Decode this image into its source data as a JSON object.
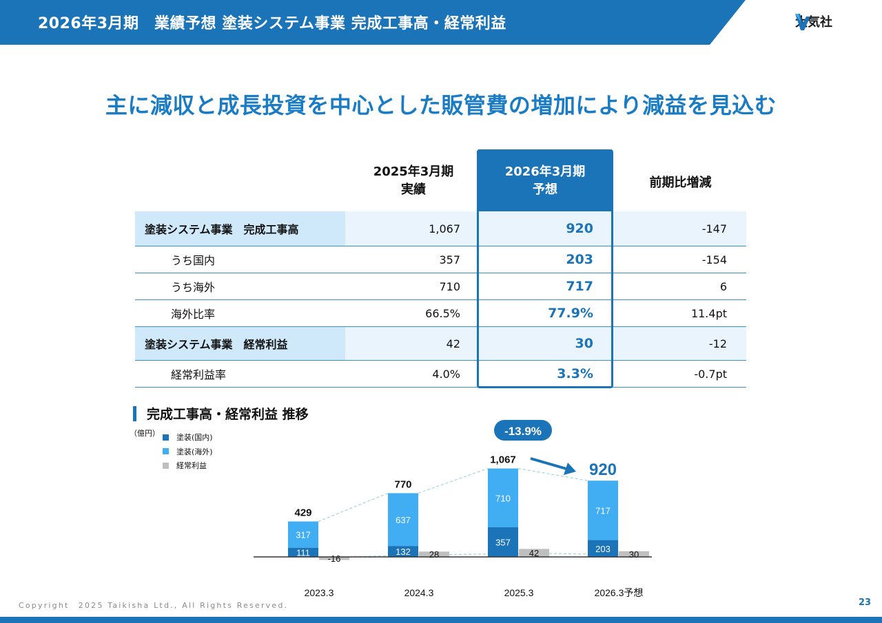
{
  "header": {
    "title": "2026年3月期　業績予想 塗装システム事業 完成工事高・経常利益",
    "logo_text": "大気社"
  },
  "headline": "主に減収と成長投資を中心とした販管費の増加により減益を見込む",
  "table": {
    "col_headers": {
      "actual": [
        "2025年3月期",
        "実績"
      ],
      "forecast": [
        "2026年3月期",
        "予想"
      ],
      "change": "前期比増減"
    },
    "rows": [
      {
        "label": "塗装システム事業　完成工事高",
        "actual": "1,067",
        "forecast": "920",
        "change": "-147",
        "highlight": true
      },
      {
        "label": "うち国内",
        "actual": "357",
        "forecast": "203",
        "change": "-154",
        "highlight": false
      },
      {
        "label": "うち海外",
        "actual": "710",
        "forecast": "717",
        "change": "6",
        "highlight": false
      },
      {
        "label": "海外比率",
        "actual": "66.5%",
        "forecast": "77.9%",
        "change": "11.4pt",
        "highlight": false
      },
      {
        "label": "塗装システム事業　経常利益",
        "actual": "42",
        "forecast": "30",
        "change": "-12",
        "highlight": true
      },
      {
        "label": "経常利益率",
        "actual": "4.0%",
        "forecast": "3.3%",
        "change": "-0.7pt",
        "highlight": false
      }
    ]
  },
  "section_title": "完成工事高・経常利益 推移",
  "unit": "（億円）",
  "legend": [
    {
      "label": "塗装(国内)",
      "color": "#1b73b8"
    },
    {
      "label": "塗装(海外)",
      "color": "#41adf3"
    },
    {
      "label": "経常利益",
      "color": "#bfbfbf"
    }
  ],
  "chart_data": {
    "type": "bar",
    "categories": [
      "2023.3",
      "2024.3",
      "2025.3",
      "2026.3予想"
    ],
    "series": [
      {
        "name": "塗装(国内)",
        "values": [
          111,
          132,
          357,
          203
        ]
      },
      {
        "name": "塗装(海外)",
        "values": [
          317,
          637,
          710,
          717
        ]
      },
      {
        "name": "経常利益",
        "values": [
          -16,
          28,
          42,
          30
        ]
      }
    ],
    "totals": [
      "429",
      "770",
      "1,067",
      "920"
    ],
    "change_badge": "-13.9%",
    "colors": {
      "domestic": "#1b73b8",
      "overseas": "#41adf3",
      "profit": "#bfbfbf"
    }
  },
  "footer": {
    "copyright": "Copyright　2025 Taikisha Ltd., All Rights Reserved.",
    "page": "23"
  }
}
